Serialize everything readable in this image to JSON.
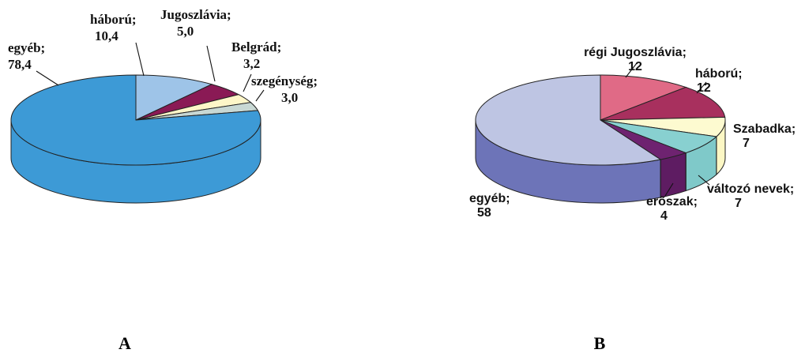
{
  "chart_data": [
    {
      "type": "pie",
      "label": "A",
      "slices": [
        {
          "name": "háború;",
          "value": "10,4",
          "numeric": 10.4,
          "color": "#9ec4e8",
          "sideColor": "#6f98c2"
        },
        {
          "name": "Jugoszlávia;",
          "value": "5,0",
          "numeric": 5.0,
          "color": "#8a1a55",
          "sideColor": "#5e0f39"
        },
        {
          "name": "Belgrád;",
          "value": "3,2",
          "numeric": 3.2,
          "color": "#fdf6c8",
          "sideColor": "#d7cf9c"
        },
        {
          "name": "szegénység;",
          "value": "3,0",
          "numeric": 3.0,
          "color": "#c8d8d4",
          "sideColor": "#97aaa6"
        },
        {
          "name": "egyéb;",
          "value": "78,4",
          "numeric": 78.4,
          "color": "#3d9ad6",
          "sideColor": "#3d9ad6"
        }
      ]
    },
    {
      "type": "pie",
      "label": "B",
      "slices": [
        {
          "name": "régi Jugoszlávia;",
          "value": "12",
          "numeric": 12,
          "color": "#e06a86",
          "sideColor": "#b44862"
        },
        {
          "name": "háború;",
          "value": "12",
          "numeric": 12,
          "color": "#a8305e",
          "sideColor": "#7a1c42"
        },
        {
          "name": "Szabadka;",
          "value": "7",
          "numeric": 7,
          "color": "#fdfad0",
          "sideColor": "#fcf7c4"
        },
        {
          "name": "változó nevek;",
          "value": "7",
          "numeric": 7,
          "color": "#88d0d0",
          "sideColor": "#7fc9c9"
        },
        {
          "name": "erőszak;",
          "value": "4",
          "numeric": 4,
          "color": "#6e2370",
          "sideColor": "#5e1c62"
        },
        {
          "name": "egyéb;",
          "value": "58",
          "numeric": 58,
          "color": "#bec5e3",
          "sideColor": "#6d74b8"
        }
      ]
    }
  ]
}
